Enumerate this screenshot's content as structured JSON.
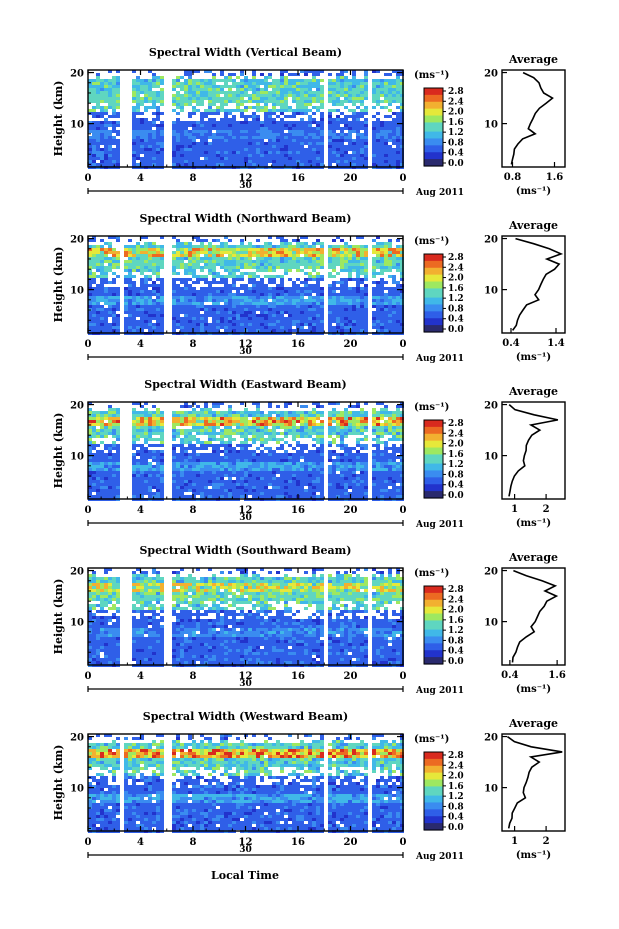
{
  "figure": {
    "xlabel": "Local Time",
    "colorbar_unit": "(ms⁻¹)",
    "colorbar_ticks": [
      "2.8",
      "2.4",
      "2.0",
      "1.6",
      "1.2",
      "0.8",
      "0.4",
      "0.0"
    ],
    "date_day": "30",
    "date_label": "Aug 2011",
    "x_ticks": [
      "0",
      "4",
      "8",
      "12",
      "16",
      "20",
      "0"
    ],
    "y_ticks": [
      "20",
      "10"
    ],
    "ylabel": "Height (km)",
    "avg_title": "Average",
    "avg_xlabel": "(ms⁻¹)"
  },
  "colors": {
    "scale": [
      "#2a2a6e",
      "#2233cc",
      "#2f5fe8",
      "#3a8cf0",
      "#40b8e8",
      "#5fd6c0",
      "#9ee860",
      "#e6e83a",
      "#f2b030",
      "#ec6a22",
      "#d92a1e"
    ]
  },
  "chart_data": [
    {
      "type": "heatmap",
      "title": "Spectral Width (Vertical Beam)",
      "xlabel": "Local Time",
      "ylabel": "Height (km)",
      "x_range": [
        0,
        24
      ],
      "y_range": [
        1.5,
        20.5
      ],
      "data_gaps_hours": [
        [
          2.3,
          3.1
        ],
        [
          5.7,
          6.1
        ],
        [
          17.7,
          18.0
        ],
        [
          21.3,
          21.6
        ]
      ],
      "bands": [
        {
          "height": 16.0,
          "level": 0.55
        },
        {
          "height": 14.5,
          "level": 0.55
        },
        {
          "height": 8.0,
          "level": 0.35
        },
        {
          "height": 18.5,
          "level": 0.3
        }
      ],
      "colorbar": {
        "min": 0.0,
        "max": 2.8
      },
      "average_profile": {
        "title": "Average",
        "xlabel": "(ms⁻¹)",
        "x_ticks": [
          "0.8",
          "1.6"
        ],
        "xlim": [
          0.6,
          1.8
        ],
        "heights": [
          2,
          3,
          4,
          5,
          6,
          7,
          8,
          9,
          10,
          11,
          12,
          13,
          14,
          15,
          16,
          17,
          18,
          19,
          20
        ],
        "values": [
          0.78,
          0.8,
          0.82,
          0.85,
          0.92,
          1.0,
          1.25,
          1.1,
          1.15,
          1.2,
          1.25,
          1.3,
          1.45,
          1.55,
          1.4,
          1.35,
          1.3,
          1.2,
          1.0
        ]
      }
    },
    {
      "type": "heatmap",
      "title": "Spectral Width (Northward Beam)",
      "xlabel": "Local Time",
      "ylabel": "Height (km)",
      "x_range": [
        0,
        24
      ],
      "y_range": [
        1.5,
        20.5
      ],
      "data_gaps_hours": [
        [
          2.3,
          2.6
        ],
        [
          5.7,
          6.1
        ],
        [
          17.7,
          18.0
        ],
        [
          21.3,
          21.6
        ]
      ],
      "bands": [
        {
          "height": 17.5,
          "level": 0.9
        },
        {
          "height": 15.0,
          "level": 0.55
        },
        {
          "height": 8.0,
          "level": 0.45
        }
      ],
      "colorbar": {
        "min": 0.0,
        "max": 2.8
      },
      "average_profile": {
        "title": "Average",
        "xlabel": "(ms⁻¹)",
        "x_ticks": [
          "0.4",
          "1.4"
        ],
        "xlim": [
          0.2,
          1.6
        ],
        "heights": [
          2,
          3,
          4,
          5,
          6,
          7,
          8,
          9,
          10,
          11,
          12,
          13,
          14,
          15,
          16,
          17,
          18,
          19,
          20
        ],
        "values": [
          0.45,
          0.5,
          0.55,
          0.6,
          0.65,
          0.75,
          1.0,
          0.95,
          1.0,
          1.05,
          1.1,
          1.2,
          1.35,
          1.45,
          1.2,
          1.5,
          1.25,
          0.9,
          0.5
        ]
      }
    },
    {
      "type": "heatmap",
      "title": "Spectral Width (Eastward Beam)",
      "xlabel": "Local Time",
      "ylabel": "Height (km)",
      "x_range": [
        0,
        24
      ],
      "y_range": [
        1.5,
        20.5
      ],
      "data_gaps_hours": [
        [
          2.3,
          3.1
        ],
        [
          5.7,
          6.1
        ],
        [
          17.7,
          18.0
        ],
        [
          21.3,
          21.6
        ]
      ],
      "bands": [
        {
          "height": 17.0,
          "level": 0.95
        },
        {
          "height": 8.0,
          "level": 0.45
        },
        {
          "height": 2.0,
          "level": 0.2
        }
      ],
      "colorbar": {
        "min": 0.0,
        "max": 2.8
      },
      "average_profile": {
        "title": "Average",
        "xlabel": "(ms⁻¹)",
        "x_ticks": [
          "1",
          "2"
        ],
        "xlim": [
          0.6,
          2.6
        ],
        "heights": [
          2,
          3,
          4,
          5,
          6,
          7,
          8,
          9,
          10,
          11,
          12,
          13,
          14,
          15,
          16,
          17,
          18,
          19,
          20
        ],
        "values": [
          0.8,
          0.85,
          0.9,
          0.95,
          1.0,
          1.1,
          1.35,
          1.25,
          1.3,
          1.35,
          1.4,
          1.45,
          1.55,
          1.8,
          1.5,
          2.4,
          1.6,
          1.0,
          0.8
        ]
      }
    },
    {
      "type": "heatmap",
      "title": "Spectral Width (Southward Beam)",
      "xlabel": "Local Time",
      "ylabel": "Height (km)",
      "x_range": [
        0,
        24
      ],
      "y_range": [
        1.5,
        20.5
      ],
      "data_gaps_hours": [
        [
          2.3,
          3.1
        ],
        [
          5.7,
          6.1
        ],
        [
          17.7,
          18.0
        ],
        [
          21.3,
          21.6
        ]
      ],
      "bands": [
        {
          "height": 17.0,
          "level": 0.8
        },
        {
          "height": 15.0,
          "level": 0.6
        },
        {
          "height": 8.0,
          "level": 0.4
        }
      ],
      "colorbar": {
        "min": 0.0,
        "max": 2.8
      },
      "average_profile": {
        "title": "Average",
        "xlabel": "(ms⁻¹)",
        "x_ticks": [
          "0.4",
          "1.6"
        ],
        "xlim": [
          0.2,
          1.8
        ],
        "heights": [
          2,
          3,
          4,
          5,
          6,
          7,
          8,
          9,
          10,
          11,
          12,
          13,
          14,
          15,
          16,
          17,
          18,
          19,
          20
        ],
        "values": [
          0.45,
          0.5,
          0.55,
          0.6,
          0.65,
          0.8,
          1.0,
          0.95,
          1.05,
          1.1,
          1.15,
          1.25,
          1.35,
          1.6,
          1.3,
          1.55,
          1.2,
          0.8,
          0.5
        ]
      }
    },
    {
      "type": "heatmap",
      "title": "Spectral Width (Westward Beam)",
      "xlabel": "Local Time",
      "ylabel": "Height (km)",
      "x_range": [
        0,
        24
      ],
      "y_range": [
        1.5,
        20.5
      ],
      "data_gaps_hours": [
        [
          2.3,
          2.6
        ],
        [
          5.7,
          6.1
        ],
        [
          17.7,
          18.0
        ],
        [
          21.3,
          21.6
        ]
      ],
      "bands": [
        {
          "height": 17.0,
          "level": 1.0
        },
        {
          "height": 8.0,
          "level": 0.45
        }
      ],
      "colorbar": {
        "min": 0.0,
        "max": 2.8
      },
      "average_profile": {
        "title": "Average",
        "xlabel": "(ms⁻¹)",
        "x_ticks": [
          "1",
          "2"
        ],
        "xlim": [
          0.6,
          2.6
        ],
        "heights": [
          2,
          3,
          4,
          5,
          6,
          7,
          8,
          9,
          10,
          11,
          12,
          13,
          14,
          15,
          16,
          17,
          18,
          19,
          20
        ],
        "values": [
          0.8,
          0.85,
          0.9,
          0.95,
          1.0,
          1.1,
          1.35,
          1.25,
          1.3,
          1.35,
          1.4,
          1.45,
          1.55,
          1.8,
          1.5,
          2.5,
          1.5,
          1.0,
          0.8
        ]
      }
    }
  ]
}
